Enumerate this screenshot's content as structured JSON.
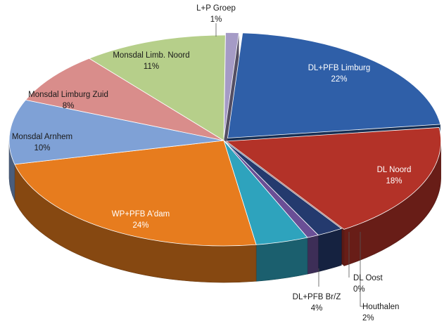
{
  "chart_data": {
    "type": "pie",
    "style": "3d-exploded",
    "slices": [
      {
        "label": "DL+PFB Limburg",
        "value": 22,
        "display": "22%",
        "color": "#2f5fa8",
        "label_color": "#ffffff"
      },
      {
        "label": "DL Noord",
        "value": 18,
        "display": "18%",
        "color": "#b33228",
        "label_color": "#ffffff"
      },
      {
        "label": "Houthalen",
        "value": 2,
        "display": "2%",
        "color": "#243a6e",
        "label_color": "#1a1a1a"
      },
      {
        "label": "DL Oost",
        "value": 0,
        "display": "0%",
        "color": "#6a4f96",
        "label_color": "#1a1a1a"
      },
      {
        "label": "DL+PFB Br/Z",
        "value": 4,
        "display": "4%",
        "color": "#2ea3bd",
        "label_color": "#1a1a1a"
      },
      {
        "label": "WP+PFB A'dam",
        "value": 24,
        "display": "24%",
        "color": "#e77c1e",
        "label_color": "#ffffff"
      },
      {
        "label": "Monsdal Arnhem",
        "value": 10,
        "display": "10%",
        "color": "#7fa1d6",
        "label_color": "#1a1a1a"
      },
      {
        "label": "Monsdal Limburg Zuid",
        "value": 8,
        "display": "8%",
        "color": "#d98d8b",
        "label_color": "#1a1a1a"
      },
      {
        "label": "Monsdal Limb. Noord",
        "value": 11,
        "display": "11%",
        "color": "#b6cf8a",
        "label_color": "#1a1a1a"
      },
      {
        "label": "L+P Groep",
        "value": 1,
        "display": "1%",
        "color": "#a59bc6",
        "label_color": "#1a1a1a"
      }
    ]
  }
}
